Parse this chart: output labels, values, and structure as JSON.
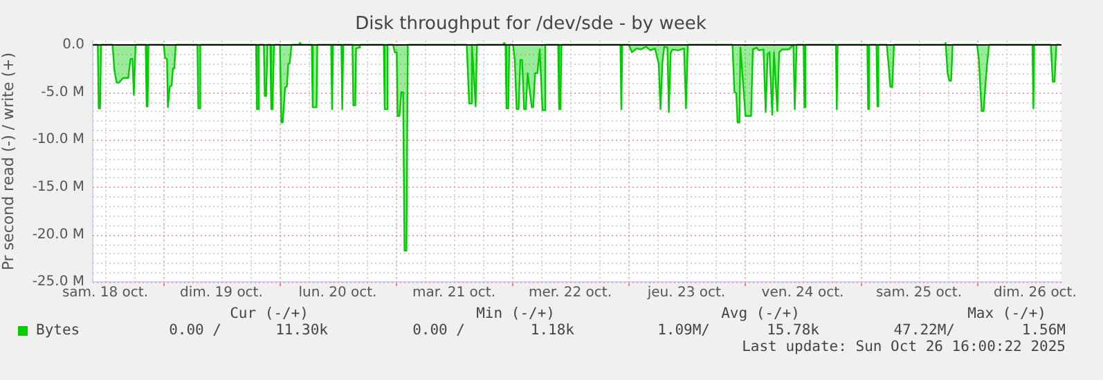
{
  "chart_data": {
    "type": "area",
    "title": "Disk throughput for /dev/sde - by week",
    "ylabel": "Pr second read (-) / write (+)",
    "xlim": [
      "2025-10-18T09:26",
      "2025-10-26T17:26"
    ],
    "ylim": [
      -25,
      0.4
    ],
    "xticks": [
      {
        "value": "2025-10-18T12:00",
        "label": "sam. 18 oct."
      },
      {
        "value": "2025-10-18T18:00",
        "label": null
      },
      {
        "value": "2025-10-19T00:00",
        "label": null
      },
      {
        "value": "2025-10-19T06:00",
        "label": null
      },
      {
        "value": "2025-10-19T12:00",
        "label": "dim. 19 oct."
      },
      {
        "value": "2025-10-19T18:00",
        "label": null
      },
      {
        "value": "2025-10-20T00:00",
        "label": null
      },
      {
        "value": "2025-10-20T06:00",
        "label": null
      },
      {
        "value": "2025-10-20T12:00",
        "label": "lun. 20 oct."
      },
      {
        "value": "2025-10-20T18:00",
        "label": null
      },
      {
        "value": "2025-10-21T00:00",
        "label": null
      },
      {
        "value": "2025-10-21T06:00",
        "label": null
      },
      {
        "value": "2025-10-21T12:00",
        "label": "mar. 21 oct."
      },
      {
        "value": "2025-10-21T18:00",
        "label": null
      },
      {
        "value": "2025-10-22T00:00",
        "label": null
      },
      {
        "value": "2025-10-22T06:00",
        "label": null
      },
      {
        "value": "2025-10-22T12:00",
        "label": "mer. 22 oct."
      },
      {
        "value": "2025-10-22T18:00",
        "label": null
      },
      {
        "value": "2025-10-23T00:00",
        "label": null
      },
      {
        "value": "2025-10-23T06:00",
        "label": null
      },
      {
        "value": "2025-10-23T12:00",
        "label": "jeu. 23 oct."
      },
      {
        "value": "2025-10-23T18:00",
        "label": null
      },
      {
        "value": "2025-10-24T00:00",
        "label": null
      },
      {
        "value": "2025-10-24T06:00",
        "label": null
      },
      {
        "value": "2025-10-24T12:00",
        "label": "ven. 24 oct."
      },
      {
        "value": "2025-10-24T18:00",
        "label": null
      },
      {
        "value": "2025-10-25T00:00",
        "label": null
      },
      {
        "value": "2025-10-25T06:00",
        "label": null
      },
      {
        "value": "2025-10-25T12:00",
        "label": "sam. 25 oct."
      },
      {
        "value": "2025-10-25T18:00",
        "label": null
      },
      {
        "value": "2025-10-26T00:00",
        "label": null
      },
      {
        "value": "2025-10-26T06:00",
        "label": null
      },
      {
        "value": "2025-10-26T12:00",
        "label": "dim. 26 oct."
      }
    ],
    "yticks": [
      {
        "value": 0,
        "label": "0.0"
      },
      {
        "value": -1,
        "label": null
      },
      {
        "value": -2,
        "label": null
      },
      {
        "value": -3,
        "label": null
      },
      {
        "value": -4,
        "label": null
      },
      {
        "value": -5,
        "label": "-5.0 M"
      },
      {
        "value": -6,
        "label": null
      },
      {
        "value": -7,
        "label": null
      },
      {
        "value": -8,
        "label": null
      },
      {
        "value": -9,
        "label": null
      },
      {
        "value": -10,
        "label": "-10.0 M"
      },
      {
        "value": -11,
        "label": null
      },
      {
        "value": -12,
        "label": null
      },
      {
        "value": -13,
        "label": null
      },
      {
        "value": -14,
        "label": null
      },
      {
        "value": -15,
        "label": "-15.0 M"
      },
      {
        "value": -16,
        "label": null
      },
      {
        "value": -17,
        "label": null
      },
      {
        "value": -18,
        "label": null
      },
      {
        "value": -19,
        "label": null
      },
      {
        "value": -20,
        "label": "-20.0 M"
      },
      {
        "value": -21,
        "label": null
      },
      {
        "value": -22,
        "label": null
      },
      {
        "value": -23,
        "label": null
      },
      {
        "value": -24,
        "label": null
      },
      {
        "value": -25,
        "label": "-25.0 M"
      }
    ],
    "grid": true,
    "legend": "bottom left",
    "ref_lines": [
      {
        "axis": "y",
        "value": 0,
        "color": "#000000"
      }
    ],
    "annotations": [
      "Cur (-/+)",
      "Min (-/+)",
      "Avg (-/+)",
      "Max (-/+)",
      "0.00 /",
      "11.30k",
      "0.00 /",
      "1.18k",
      "1.09M/",
      "15.78k",
      "47.22M/",
      "1.56M",
      "Last update: Sun Oct 26 16:00:22 2025"
    ],
    "series": [
      {
        "name": "Bytes",
        "color": "#00cc00",
        "x": [
          "2025-10-18T09:43",
          "2025-10-18T10:29",
          "2025-10-18T10:40",
          "2025-10-18T10:57",
          "2025-10-18T11:09",
          "2025-10-18T13:31",
          "2025-10-18T13:55",
          "2025-10-18T14:22",
          "2025-10-18T14:51",
          "2025-10-18T15:43",
          "2025-10-18T16:46",
          "2025-10-18T17:14",
          "2025-10-18T17:38",
          "2025-10-18T17:55",
          "2025-10-18T18:17",
          "2025-10-18T20:22",
          "2025-10-18T20:34",
          "2025-10-18T20:46",
          "2025-10-18T20:57",
          "2025-10-19T00:05",
          "2025-10-19T00:22",
          "2025-10-19T00:46",
          "2025-10-19T00:57",
          "2025-10-19T01:21",
          "2025-10-19T01:43",
          "2025-10-19T02:00",
          "2025-10-19T02:17",
          "2025-10-19T02:34",
          "2025-10-19T07:03",
          "2025-10-19T07:14",
          "2025-10-19T07:26",
          "2025-10-19T07:38",
          "2025-10-19T19:09",
          "2025-10-19T19:20",
          "2025-10-19T19:31",
          "2025-10-19T19:43",
          "2025-10-19T20:46",
          "2025-10-19T20:57",
          "2025-10-19T21:14",
          "2025-10-19T21:31",
          "2025-10-19T22:05",
          "2025-10-19T22:17",
          "2025-10-19T22:34",
          "2025-10-19T22:51",
          "2025-10-20T00:05",
          "2025-10-20T00:22",
          "2025-10-20T00:39",
          "2025-10-20T01:09",
          "2025-10-20T01:31",
          "2025-10-20T01:48",
          "2025-10-20T02:05",
          "2025-10-20T02:29",
          "2025-10-20T04:00",
          "2025-10-20T04:12",
          "2025-10-20T04:34",
          "2025-10-20T06:39",
          "2025-10-20T06:51",
          "2025-10-20T07:38",
          "2025-10-20T07:48",
          "2025-10-20T10:39",
          "2025-10-20T10:51",
          "2025-10-20T11:03",
          "2025-10-20T12:46",
          "2025-10-20T12:57",
          "2025-10-20T13:09",
          "2025-10-20T15:03",
          "2025-10-20T15:14",
          "2025-10-20T15:38",
          "2025-10-20T15:48",
          "2025-10-20T16:22",
          "2025-10-20T16:34",
          "2025-10-20T21:31",
          "2025-10-20T21:43",
          "2025-10-20T22:05",
          "2025-10-20T22:17",
          "2025-10-20T23:26",
          "2025-10-20T23:48",
          "2025-10-21T00:12",
          "2025-10-21T00:22",
          "2025-10-21T00:46",
          "2025-10-21T01:09",
          "2025-10-21T01:31",
          "2025-10-21T01:48",
          "2025-10-21T02:12",
          "2025-10-21T02:29",
          "2025-10-21T14:39",
          "2025-10-21T15:09",
          "2025-10-21T15:26",
          "2025-10-21T15:43",
          "2025-10-21T16:29",
          "2025-10-21T16:46",
          "2025-10-21T22:10",
          "2025-10-21T22:22",
          "2025-10-21T22:39",
          "2025-10-21T22:51",
          "2025-10-21T23:14",
          "2025-10-21T23:26",
          "2025-10-22T00:12",
          "2025-10-22T00:34",
          "2025-10-22T00:57",
          "2025-10-22T01:21",
          "2025-10-22T01:43",
          "2025-10-22T02:05",
          "2025-10-22T02:29",
          "2025-10-22T02:51",
          "2025-10-22T03:14",
          "2025-10-22T04:05",
          "2025-10-22T04:22",
          "2025-10-22T04:46",
          "2025-10-22T05:14",
          "2025-10-22T05:43",
          "2025-10-22T06:17",
          "2025-10-22T06:39",
          "2025-10-22T06:51",
          "2025-10-22T09:31",
          "2025-10-22T09:43",
          "2025-10-22T10:00",
          "2025-10-22T10:12",
          "2025-10-22T22:22",
          "2025-10-22T22:34",
          "2025-10-22T22:46",
          "2025-10-23T00:05",
          "2025-10-23T00:46",
          "2025-10-23T01:43",
          "2025-10-23T02:39",
          "2025-10-23T03:38",
          "2025-10-23T04:34",
          "2025-10-23T05:31",
          "2025-10-23T06:17",
          "2025-10-23T06:39",
          "2025-10-23T07:03",
          "2025-10-23T07:26",
          "2025-10-23T08:05",
          "2025-10-23T08:22",
          "2025-10-23T08:46",
          "2025-10-23T09:09",
          "2025-10-23T10:17",
          "2025-10-23T11:31",
          "2025-10-23T11:55",
          "2025-10-23T12:17",
          "2025-10-23T21:31",
          "2025-10-23T21:55",
          "2025-10-23T22:17",
          "2025-10-23T22:34",
          "2025-10-23T22:57",
          "2025-10-23T23:09",
          "2025-10-24T00:12",
          "2025-10-24T01:21",
          "2025-10-24T01:43",
          "2025-10-24T02:29",
          "2025-10-24T02:57",
          "2025-10-24T03:55",
          "2025-10-24T04:22",
          "2025-10-24T04:46",
          "2025-10-24T05:09",
          "2025-10-24T05:43",
          "2025-10-24T06:05",
          "2025-10-24T06:46",
          "2025-10-24T07:09",
          "2025-10-24T07:43",
          "2025-10-24T09:09",
          "2025-10-24T09:43",
          "2025-10-24T10:05",
          "2025-10-24T10:22",
          "2025-10-24T10:46",
          "2025-10-24T12:12",
          "2025-10-24T12:22",
          "2025-10-24T12:34",
          "2025-10-24T18:51",
          "2025-10-24T19:03",
          "2025-10-24T19:14",
          "2025-10-25T01:21",
          "2025-10-25T01:31",
          "2025-10-25T01:43",
          "2025-10-25T03:14",
          "2025-10-25T03:26",
          "2025-10-25T03:38",
          "2025-10-25T05:21",
          "2025-10-25T05:43",
          "2025-10-25T06:05",
          "2025-10-25T06:29",
          "2025-10-25T06:51",
          "2025-10-25T17:20",
          "2025-10-25T17:31",
          "2025-10-25T17:55",
          "2025-10-25T18:17",
          "2025-10-25T18:39",
          "2025-10-25T18:57",
          "2025-10-26T00:00",
          "2025-10-26T00:22",
          "2025-10-26T00:57",
          "2025-10-26T01:21",
          "2025-10-26T01:43",
          "2025-10-26T02:05",
          "2025-10-26T02:29",
          "2025-10-26T11:26",
          "2025-10-26T11:38",
          "2025-10-26T11:48",
          "2025-10-26T15:14",
          "2025-10-26T15:38",
          "2025-10-26T16:00",
          "2025-10-26T16:22",
          "2025-10-26T17:09"
        ],
        "values": [
          0,
          0,
          -6.7,
          -6.7,
          0,
          0,
          -2.7,
          -4.0,
          -4.0,
          -3.5,
          -3.5,
          -1.5,
          -1.5,
          -5.3,
          0,
          0,
          -6.5,
          -6.5,
          0,
          0,
          -1.4,
          -1.5,
          -6.6,
          -4.4,
          -4.3,
          -2.5,
          -2.5,
          0,
          0,
          -6.7,
          -6.7,
          0,
          0,
          -6.8,
          -6.8,
          0,
          0,
          -5.4,
          -5.4,
          0,
          0,
          -6.8,
          -6.8,
          0,
          0,
          -8.2,
          -8.2,
          -4.5,
          -4.4,
          -2.0,
          -2.0,
          0,
          0,
          0.2,
          0,
          0,
          -6.6,
          -6.6,
          0,
          0,
          -6.8,
          0,
          0,
          -6.8,
          0,
          0,
          -6.4,
          -6.4,
          -0.4,
          -0.3,
          0,
          0,
          -6.8,
          -6.8,
          0,
          0,
          -0.8,
          -0.8,
          -7.5,
          -7.5,
          -5.0,
          -5.0,
          -21.7,
          -21.7,
          0,
          0,
          -6.2,
          -6.2,
          0,
          -6.5,
          0,
          0,
          0.2,
          0,
          -6.7,
          -6.7,
          0,
          0,
          -1.6,
          -6.8,
          -6.8,
          -1.6,
          -1.6,
          -6.8,
          -6.8,
          -3.0,
          -6.6,
          -6.6,
          -3.0,
          -3.0,
          -0.5,
          -6.9,
          -6.9,
          0,
          0,
          -6.8,
          -6.8,
          0,
          0,
          -6.8,
          0,
          0,
          -0.8,
          -0.4,
          -0.5,
          -0.2,
          -0.6,
          -0.4,
          -2.0,
          -6.8,
          -1.8,
          -0.2,
          -0.3,
          -7.1,
          -0.8,
          -0.5,
          -0.6,
          -0.4,
          -6.7,
          0,
          0,
          -5.0,
          -5.1,
          -8.2,
          -8.2,
          -0.3,
          -7.5,
          -7.5,
          -0.5,
          -0.3,
          -0.6,
          -0.5,
          -7.1,
          -1.0,
          -0.8,
          -7.4,
          -0.8,
          -7.0,
          -0.8,
          -0.5,
          -0.5,
          -0.2,
          0,
          -6.8,
          0,
          0,
          -6.6,
          0,
          0,
          -6.8,
          0,
          0,
          -6.8,
          0,
          0,
          -6.5,
          0,
          0,
          -2.0,
          -4.4,
          -4.5,
          0,
          0,
          0.2,
          -3.0,
          -3.8,
          -3.8,
          0,
          0,
          -1.5,
          -7.0,
          -7.0,
          -4.3,
          -2.0,
          0,
          0,
          -6.7,
          0,
          0,
          -3.9,
          -3.9,
          0,
          0
        ]
      }
    ]
  }
}
